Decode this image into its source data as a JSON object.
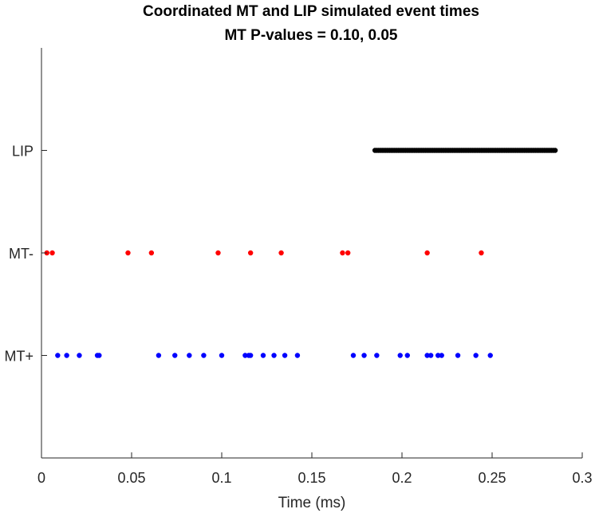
{
  "chart_data": {
    "type": "scatter",
    "title": "Coordinated MT and LIP simulated event times",
    "subtitle": "MT P-values = 0.10, 0.05",
    "xlabel": "Time (ms)",
    "ylabel": "",
    "xlim": [
      0,
      0.3
    ],
    "ylim": [
      0,
      4
    ],
    "x_ticks": [
      0,
      0.05,
      0.1,
      0.15,
      0.2,
      0.25,
      0.3
    ],
    "x_tick_labels": [
      "0",
      "0.05",
      "0.1",
      "0.15",
      "0.2",
      "0.25",
      "0.3"
    ],
    "y_ticks": [
      1,
      2,
      3
    ],
    "y_tick_labels": [
      "MT+",
      "MT-",
      "LIP"
    ],
    "grid": false,
    "series": [
      {
        "y": 3,
        "color": "#000000",
        "x": [
          0.185,
          0.186,
          0.187,
          0.188,
          0.189,
          0.19,
          0.191,
          0.192,
          0.193,
          0.194,
          0.195,
          0.196,
          0.197,
          0.198,
          0.199,
          0.2,
          0.201,
          0.202,
          0.203,
          0.204,
          0.205,
          0.206,
          0.207,
          0.208,
          0.209,
          0.21,
          0.211,
          0.212,
          0.213,
          0.214,
          0.215,
          0.216,
          0.217,
          0.218,
          0.219,
          0.22,
          0.221,
          0.222,
          0.223,
          0.224,
          0.225,
          0.226,
          0.227,
          0.228,
          0.229,
          0.23,
          0.231,
          0.232,
          0.233,
          0.234,
          0.235,
          0.236,
          0.237,
          0.238,
          0.239,
          0.24,
          0.241,
          0.242,
          0.243,
          0.244,
          0.245,
          0.246,
          0.247,
          0.248,
          0.249,
          0.25,
          0.251,
          0.252,
          0.253,
          0.254,
          0.255,
          0.256,
          0.257,
          0.258,
          0.259,
          0.26,
          0.261,
          0.262,
          0.263,
          0.264,
          0.265,
          0.266,
          0.267,
          0.268,
          0.269,
          0.27,
          0.271,
          0.272,
          0.273,
          0.274,
          0.275,
          0.276,
          0.277,
          0.278,
          0.279,
          0.28,
          0.281,
          0.282,
          0.283,
          0.284,
          0.285
        ]
      },
      {
        "y": 2,
        "color": "#ff0000",
        "x": [
          0.003,
          0.006,
          0.048,
          0.061,
          0.098,
          0.116,
          0.133,
          0.167,
          0.17,
          0.214,
          0.244
        ]
      },
      {
        "y": 1,
        "color": "#0000ff",
        "x": [
          0.009,
          0.014,
          0.021,
          0.031,
          0.032,
          0.065,
          0.074,
          0.082,
          0.09,
          0.1,
          0.113,
          0.115,
          0.116,
          0.123,
          0.129,
          0.135,
          0.142,
          0.173,
          0.179,
          0.186,
          0.199,
          0.203,
          0.214,
          0.216,
          0.22,
          0.222,
          0.231,
          0.241,
          0.249
        ]
      }
    ]
  }
}
